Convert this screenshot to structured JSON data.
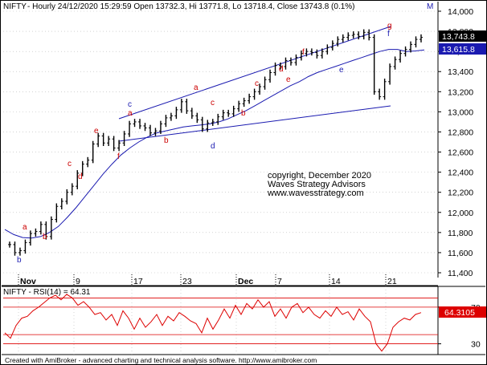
{
  "header": {
    "symbol": "NIFTY",
    "info": "- Hourly 24/12/2020 15:29:59 Open 13732.3, Hi 13771.8, Lo 13718.4, Close 13743.8 (0.1%)",
    "m_badge": "M"
  },
  "watermark": {
    "line1": "copyright, December 2020",
    "line2": "Waves Strategy Advisors",
    "line3": "www.wavesstrategy.com"
  },
  "footer": "Created with AmiBroker - advanced charting and technical analysis software. http://www.amibroker.com",
  "colors": {
    "price": "#000000",
    "channel": "#1a1ab0",
    "ma": "#1a1ab0",
    "label_red": "#cc0000",
    "label_blue": "#1a1ab0",
    "rsi": "#dd0000",
    "grid": "#b8b8b8"
  },
  "chart_data": [
    {
      "type": "line",
      "panel": "price",
      "ylim": [
        11400,
        14000
      ],
      "y_ticks": [
        "14,000",
        "13,800",
        "13,600",
        "13,400",
        "13,200",
        "13,000",
        "12,800",
        "12,600",
        "12,400",
        "12,200",
        "12,000",
        "11,800",
        "11,600",
        "11,400"
      ],
      "x_ticks": [
        "Nov",
        "9",
        "17",
        "23",
        "Dec",
        "7",
        "14",
        "21"
      ],
      "grid": true,
      "last_close_label": "13,743.8",
      "ma_label": "13,615.8",
      "series": [
        {
          "kind": "ohlc_close",
          "values": [
            11680,
            11600,
            11620,
            11700,
            11790,
            11810,
            11880,
            11760,
            11930,
            12060,
            12110,
            12200,
            12260,
            12390,
            12480,
            12520,
            12680,
            12760,
            12690,
            12730,
            12640,
            12690,
            12780,
            12880,
            12900,
            12860,
            12840,
            12790,
            12810,
            12880,
            12940,
            12960,
            13020,
            13100,
            13010,
            12960,
            12920,
            12830,
            12890,
            12900,
            12950,
            12990,
            12980,
            13030,
            13080,
            13110,
            13150,
            13200,
            13250,
            13320,
            13390,
            13460,
            13450,
            13510,
            13490,
            13540,
            13580,
            13600,
            13590,
            13560,
            13600,
            13640,
            13680,
            13720,
            13740,
            13760,
            13770,
            13750,
            13790,
            13740,
            13200,
            13150,
            13300,
            13450,
            13520,
            13580,
            13620,
            13670,
            13720,
            13740
          ]
        },
        {
          "kind": "moving_average",
          "values": [
            11830,
            11780,
            11750,
            11745,
            11760,
            11800,
            11860,
            11950,
            12050,
            12160,
            12270,
            12380,
            12480,
            12570,
            12640,
            12700,
            12750,
            12790,
            12810,
            12830,
            12850,
            12860,
            12870,
            12880,
            12900,
            12930,
            12970,
            13010,
            13060,
            13110,
            13160,
            13210,
            13260,
            13300,
            13350,
            13390,
            13420,
            13450,
            13480,
            13510,
            13540,
            13570,
            13600,
            13620,
            13620,
            13600,
            13605,
            13615
          ]
        }
      ],
      "wave_labels": [
        {
          "text": "b",
          "color": "blue"
        },
        {
          "text": "a",
          "color": "red"
        },
        {
          "text": "b",
          "color": "red"
        },
        {
          "text": "c",
          "color": "red"
        },
        {
          "text": "d",
          "color": "red"
        },
        {
          "text": "e",
          "color": "red"
        },
        {
          "text": "f",
          "color": "red"
        },
        {
          "text": "c",
          "color": "blue"
        },
        {
          "text": "a",
          "color": "red"
        },
        {
          "text": "b",
          "color": "red"
        },
        {
          "text": "a",
          "color": "red"
        },
        {
          "text": "c",
          "color": "red"
        },
        {
          "text": "d",
          "color": "blue"
        },
        {
          "text": "b",
          "color": "red"
        },
        {
          "text": "c",
          "color": "red"
        },
        {
          "text": "d",
          "color": "red"
        },
        {
          "text": "e",
          "color": "red"
        },
        {
          "text": "f",
          "color": "red"
        },
        {
          "text": "e",
          "color": "blue"
        },
        {
          "text": "g",
          "color": "red"
        },
        {
          "text": "f",
          "color": "blue"
        }
      ]
    },
    {
      "type": "line",
      "panel": "rsi",
      "title": "NIFTY - RSI(14) = 64.31",
      "ylim": [
        20,
        90
      ],
      "y_ticks": [
        "70",
        "30"
      ],
      "reference_lines": [
        80,
        70,
        40,
        30
      ],
      "last_value_label": "64.3105",
      "series": [
        {
          "name": "RSI(14)",
          "values": [
            42,
            36,
            50,
            58,
            60,
            66,
            70,
            75,
            80,
            83,
            78,
            84,
            80,
            72,
            76,
            70,
            62,
            64,
            56,
            62,
            50,
            66,
            58,
            46,
            58,
            48,
            54,
            62,
            50,
            60,
            55,
            64,
            60,
            55,
            52,
            42,
            58,
            46,
            56,
            68,
            58,
            72,
            62,
            74,
            68,
            78,
            70,
            76,
            60,
            68,
            58,
            70,
            74,
            64,
            70,
            62,
            58,
            66,
            60,
            70,
            62,
            65,
            56,
            68,
            60,
            54,
            30,
            22,
            30,
            48,
            54,
            58,
            56,
            62,
            64
          ]
        }
      ]
    }
  ]
}
